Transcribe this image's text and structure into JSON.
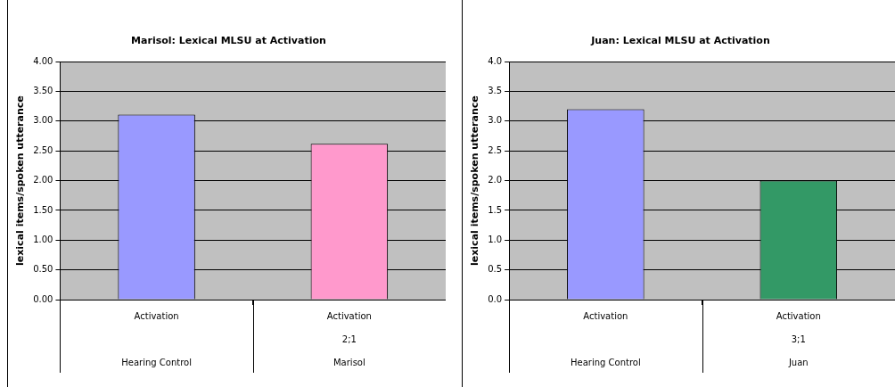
{
  "chart_data": [
    {
      "type": "bar",
      "title": "Marisol: Lexical MLSU at Activation",
      "ylabel": "lexical items/spoken utterance",
      "categories": [
        "Activation\n\nHearing Control",
        "Activation\n2;1\nMarisol"
      ],
      "values": [
        3.11,
        2.62
      ],
      "colors": [
        "#9999ff",
        "#ff99cc"
      ],
      "ylim": [
        0,
        4
      ],
      "yticks": [
        {
          "value": 0,
          "label": "0.00"
        },
        {
          "value": 0.5,
          "label": "0.50"
        },
        {
          "value": 1,
          "label": "1.00"
        },
        {
          "value": 1.5,
          "label": "1.50"
        },
        {
          "value": 2,
          "label": "2.00"
        },
        {
          "value": 2.5,
          "label": "2.50"
        },
        {
          "value": 3,
          "label": "3.00"
        },
        {
          "value": 3.5,
          "label": "3.50"
        },
        {
          "value": 4,
          "label": "4.00"
        }
      ],
      "grid": "y",
      "legend": false
    },
    {
      "type": "bar",
      "title": "Juan: Lexical MLSU at Activation",
      "ylabel": "lexical items/spoken utterance",
      "categories": [
        "Activation\n\nHearing Control",
        "Activation\n3;1\nJuan"
      ],
      "values": [
        3.2,
        2.0
      ],
      "colors": [
        "#9999ff",
        "#339966"
      ],
      "ylim": [
        0,
        4
      ],
      "yticks": [
        {
          "value": 0,
          "label": "0.0"
        },
        {
          "value": 0.5,
          "label": "0.5"
        },
        {
          "value": 1,
          "label": "1.0"
        },
        {
          "value": 1.5,
          "label": "1.5"
        },
        {
          "value": 2,
          "label": "2.0"
        },
        {
          "value": 2.5,
          "label": "2.5"
        },
        {
          "value": 3,
          "label": "3.0"
        },
        {
          "value": 3.5,
          "label": "3.5"
        },
        {
          "value": 4,
          "label": "4.0"
        }
      ],
      "grid": "y",
      "legend": false
    }
  ]
}
